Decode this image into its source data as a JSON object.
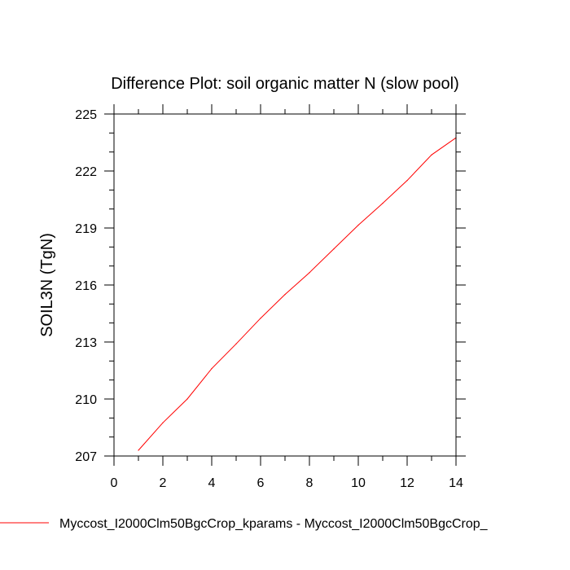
{
  "chart_data": {
    "type": "line",
    "title": "Difference Plot: soil organic matter N (slow pool)",
    "xlabel": "",
    "ylabel": "SOIL3N  (TgN)",
    "xlim": [
      0,
      14
    ],
    "ylim": [
      207,
      225
    ],
    "x_ticks": [
      "0",
      "2",
      "4",
      "6",
      "8",
      "10",
      "12",
      "14"
    ],
    "y_ticks": [
      "207",
      "210",
      "213",
      "216",
      "219",
      "222",
      "225"
    ],
    "grid": false,
    "legend_position": "bottom",
    "series": [
      {
        "name": "Myccost_I2000Clm50BgcCrop_kparams - Myccost_I2000Clm50BgcCrop_",
        "color": "#ff0000",
        "x": [
          1,
          2,
          3,
          4,
          5,
          6,
          7,
          8,
          9,
          10,
          11,
          12,
          13,
          14
        ],
        "values": [
          207.3,
          208.75,
          210.0,
          211.6,
          212.9,
          214.25,
          215.5,
          216.65,
          217.9,
          219.15,
          220.3,
          221.5,
          222.85,
          223.75
        ]
      }
    ]
  }
}
